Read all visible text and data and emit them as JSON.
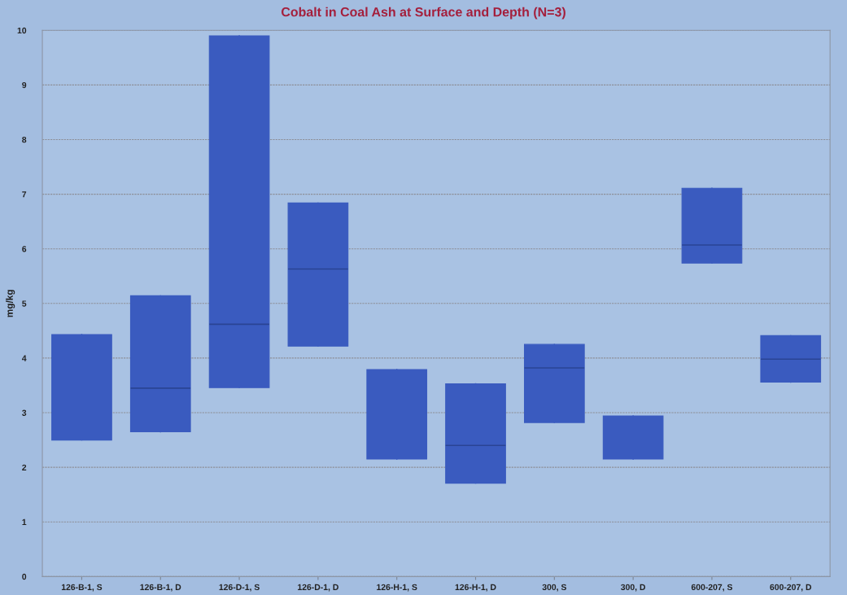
{
  "chart_data": {
    "type": "box",
    "title": "Cobalt in Coal Ash at Surface and Depth (N=3)",
    "ylabel": "mg/kg",
    "categories": [
      "126-B-1, S",
      "126-B-1, D",
      "126-D-1, S",
      "126-D-1, D",
      "126-H-1, S",
      "126-H-1, D",
      "300, S",
      "300, D",
      "600-207, S",
      "600-207, D"
    ],
    "boxes": [
      {
        "low": 2.5,
        "q1": 2.5,
        "median": null,
        "q3": 4.43,
        "high": 4.43
      },
      {
        "low": 2.65,
        "q1": 2.65,
        "median": 3.45,
        "q3": 5.14,
        "high": 5.14
      },
      {
        "low": 3.46,
        "q1": 3.46,
        "median": 4.62,
        "q3": 9.9,
        "high": 9.9
      },
      {
        "low": 4.22,
        "q1": 4.22,
        "median": 5.63,
        "q3": 6.84,
        "high": 6.84
      },
      {
        "low": 2.15,
        "q1": 2.15,
        "median": null,
        "q3": 3.79,
        "high": 3.79
      },
      {
        "low": 1.71,
        "q1": 1.71,
        "median": 2.4,
        "q3": 3.53,
        "high": 3.53
      },
      {
        "low": 2.82,
        "q1": 2.82,
        "median": 3.82,
        "q3": 4.25,
        "high": 4.25
      },
      {
        "low": 2.15,
        "q1": 2.15,
        "median": null,
        "q3": 2.94,
        "high": 2.94
      },
      {
        "low": 5.74,
        "q1": 5.74,
        "median": 6.07,
        "q3": 7.11,
        "high": 7.11
      },
      {
        "low": 3.56,
        "q1": 3.56,
        "median": 3.98,
        "q3": 4.41,
        "high": 4.41
      }
    ],
    "color": "#3a5bbf",
    "ylim": [
      0,
      10
    ],
    "yticks": [
      0,
      1,
      2,
      3,
      4,
      5,
      6,
      7,
      8,
      9,
      10
    ],
    "grid": "y"
  }
}
